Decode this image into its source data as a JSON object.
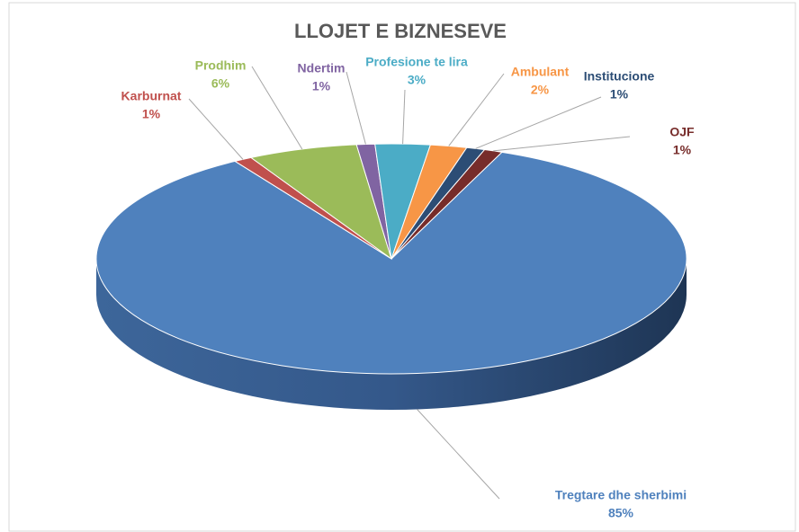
{
  "chart_data": {
    "type": "pie",
    "title": "LLOJET E BIZNESEVE",
    "categories": [
      "Tregtare dhe sherbimi",
      "Karburnat",
      "Prodhim",
      "Ndertim",
      "Profesione te lira",
      "Ambulant",
      "Institucione",
      "OJF"
    ],
    "values": [
      85,
      1,
      6,
      1,
      3,
      2,
      1,
      1
    ],
    "value_labels": [
      "85%",
      "1%",
      "6%",
      "1%",
      "3%",
      "2%",
      "1%",
      "1%"
    ],
    "colors": [
      "#4f81bd",
      "#c0504d",
      "#9bbb59",
      "#8064a2",
      "#4bacc6",
      "#f79646",
      "#2c4d75",
      "#772c2a"
    ]
  }
}
